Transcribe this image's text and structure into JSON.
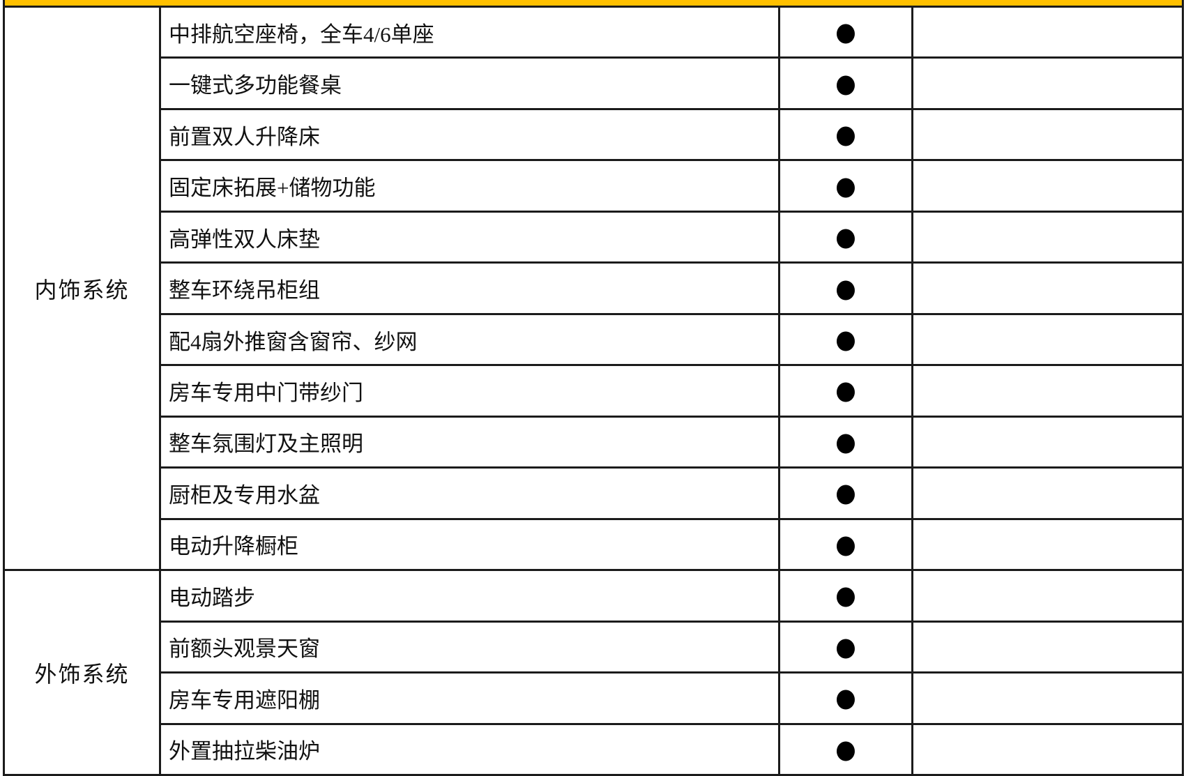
{
  "header_bar": {
    "color": "#FFC000"
  },
  "table": {
    "border_color": "#1b1b1b",
    "marker_meaning": "standard-equipment",
    "sections": [
      {
        "category": "内饰系统",
        "rows": [
          {
            "feature": "中排航空座椅，全车4/6单座",
            "standard": "●"
          },
          {
            "feature": "一键式多功能餐桌",
            "standard": "●"
          },
          {
            "feature": "前置双人升降床",
            "standard": "●"
          },
          {
            "feature": "固定床拓展+储物功能",
            "standard": "●"
          },
          {
            "feature": "高弹性双人床垫",
            "standard": "●"
          },
          {
            "feature": "整车环绕吊柜组",
            "standard": "●"
          },
          {
            "feature": "配4扇外推窗含窗帘、纱网",
            "standard": "●"
          },
          {
            "feature": "房车专用中门带纱门",
            "standard": "●"
          },
          {
            "feature": "整车氛围灯及主照明",
            "standard": "●"
          },
          {
            "feature": "厨柜及专用水盆",
            "standard": "●"
          },
          {
            "feature": "电动升降橱柜",
            "standard": "●"
          }
        ]
      },
      {
        "category": "外饰系统",
        "rows": [
          {
            "feature": "电动踏步",
            "standard": "●"
          },
          {
            "feature": "前额头观景天窗",
            "standard": "●"
          },
          {
            "feature": "房车专用遮阳棚",
            "standard": "●"
          },
          {
            "feature": "外置抽拉柴油炉",
            "standard": "●"
          }
        ]
      }
    ]
  }
}
